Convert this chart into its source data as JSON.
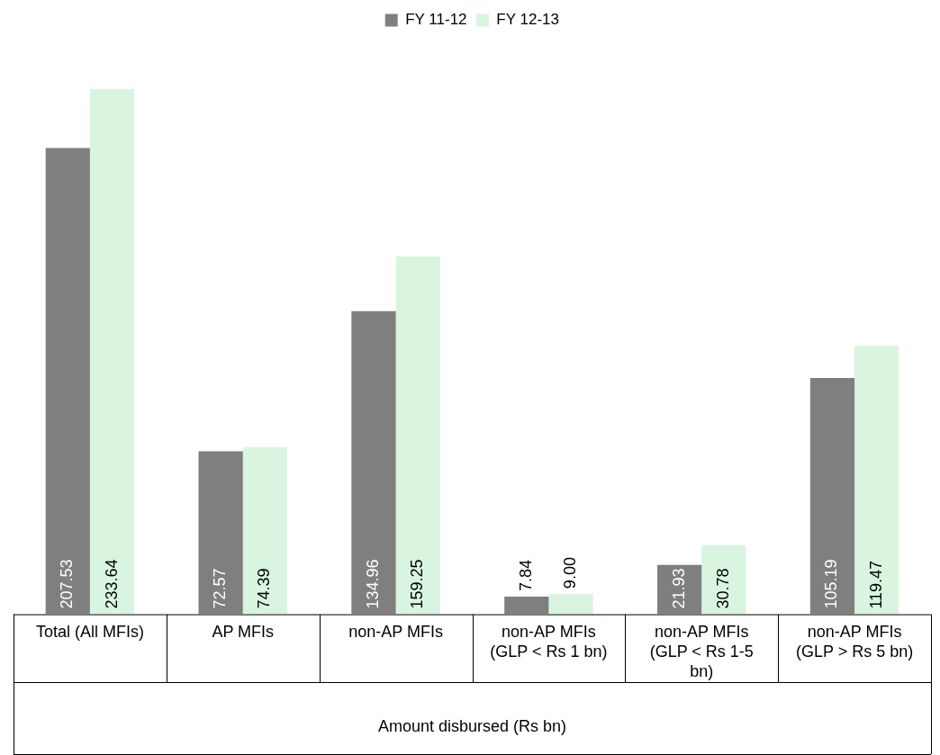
{
  "chart_data": {
    "type": "bar",
    "xlabel": "Amount disbursed (Rs bn)",
    "categories": [
      "Total (All MFIs)",
      "AP MFIs",
      "non-AP MFIs",
      "non-AP MFIs (GLP < Rs 1 bn)",
      "non-AP MFIs (GLP < Rs 1-5 bn)",
      "non-AP MFIs (GLP > Rs 5 bn)"
    ],
    "series": [
      {
        "name": "FY 11-12",
        "color": "#7f7f7f",
        "values": [
          207.53,
          72.57,
          134.96,
          7.84,
          21.93,
          105.19
        ],
        "value_labels": [
          "207.53",
          "72.57",
          "134.96",
          "7.84",
          "21.93",
          "105.19"
        ]
      },
      {
        "name": "FY 12-13",
        "color": "#d9f5e0",
        "values": [
          233.64,
          74.39,
          159.25,
          9.0,
          30.78,
          119.47
        ],
        "value_labels": [
          "233.64",
          "74.39",
          "159.25",
          "9.00",
          "30.78",
          "119.47"
        ]
      }
    ],
    "legend": "top",
    "grid": false
  }
}
